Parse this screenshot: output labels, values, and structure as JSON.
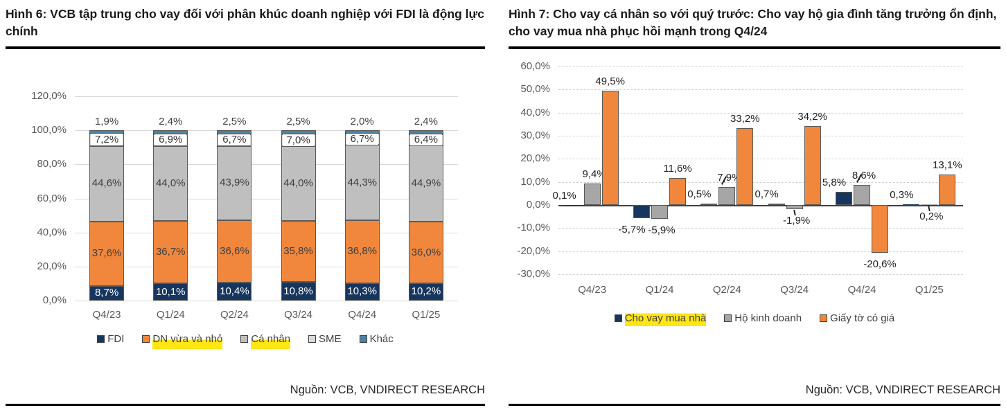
{
  "fig6": {
    "title": "Hình 6: VCB tập trung cho vay đối với phân khúc doanh nghiệp với FDI là động lực chính",
    "source": "Nguồn: VCB, VNDIRECT RESEARCH",
    "legend": [
      {
        "label": "FDI",
        "color": "#17365D",
        "highlight": false
      },
      {
        "label": "DN vừa và nhỏ",
        "color": "#F0873D",
        "highlight": true
      },
      {
        "label": "Cá nhân",
        "color": "#BFBFBF",
        "highlight": true
      },
      {
        "label": "SME",
        "color": "#D9D9D9",
        "highlight": false
      },
      {
        "label": "Khác",
        "color": "#4E81A0",
        "highlight": false
      }
    ]
  },
  "fig7": {
    "title": "Hình 7: Cho vay cá nhân so với quý trước: Cho vay hộ gia đình tăng trưởng ổn định, cho vay mua nhà phục hồi mạnh trong Q4/24",
    "source": "Nguồn: VCB, VNDIRECT RESEARCH",
    "legend": [
      {
        "label": "Cho vay mua nhà",
        "color": "#17365D",
        "highlight": true
      },
      {
        "label": "Hộ kinh doanh",
        "color": "#A6A6A6",
        "highlight": false
      },
      {
        "label": "Giấy tờ có giá",
        "color": "#F0873D",
        "highlight": false
      }
    ]
  },
  "chart_data": [
    {
      "type": "bar",
      "subtype": "stacked",
      "title": "VCB loan book mix by segment",
      "categories": [
        "Q4/23",
        "Q1/24",
        "Q2/24",
        "Q3/24",
        "Q4/24",
        "Q1/25"
      ],
      "series": [
        {
          "name": "FDI",
          "color": "#17365D",
          "label_style": "white",
          "values": [
            8.7,
            10.1,
            10.4,
            10.8,
            10.3,
            10.2
          ],
          "labels": [
            "8,7%",
            "10,1%",
            "10,4%",
            "10,8%",
            "10,3%",
            "10,2%"
          ]
        },
        {
          "name": "DN vừa và nhỏ",
          "color": "#F0873D",
          "label_style": "inside",
          "values": [
            37.6,
            36.7,
            36.6,
            35.8,
            36.8,
            36.0
          ],
          "labels": [
            "37,6%",
            "36,7%",
            "36,6%",
            "35,8%",
            "36,8%",
            "36,0%"
          ]
        },
        {
          "name": "Cá nhân",
          "color": "#BFBFBF",
          "label_style": "inside",
          "values": [
            44.6,
            44.0,
            43.9,
            44.0,
            44.3,
            44.9
          ],
          "labels": [
            "44,6%",
            "44,0%",
            "43,9%",
            "44,0%",
            "44,3%",
            "44,9%"
          ]
        },
        {
          "name": "SME",
          "color": "#D9D9D9",
          "label_style": "boxed",
          "values": [
            7.2,
            6.9,
            6.7,
            7.0,
            6.7,
            6.4
          ],
          "labels": [
            "7,2%",
            "6,9%",
            "6,7%",
            "7,0%",
            "6,7%",
            "6,4%"
          ]
        },
        {
          "name": "Khác",
          "color": "#4E81A0",
          "label_style": "above",
          "values": [
            1.9,
            2.4,
            2.5,
            2.5,
            2.0,
            2.4
          ],
          "labels": [
            "1,9%",
            "2,4%",
            "2,5%",
            "2,5%",
            "2,0%",
            "2,4%"
          ]
        }
      ],
      "ylim": [
        0,
        120
      ],
      "y_ticks": {
        "values": [
          0,
          20,
          40,
          60,
          80,
          100,
          120
        ],
        "labels": [
          "0,0%",
          "20,0%",
          "40,0%",
          "60,0%",
          "80,0%",
          "100,0%",
          "120,0%"
        ]
      },
      "grid": "solid",
      "legend_position": "bottom"
    },
    {
      "type": "bar",
      "subtype": "grouped",
      "title": "Personal lending growth q/q",
      "categories": [
        "Q4/23",
        "Q1/24",
        "Q2/24",
        "Q3/24",
        "Q4/24",
        "Q1/25"
      ],
      "series": [
        {
          "name": "Cho vay mua nhà",
          "color": "#17365D",
          "values": [
            0.1,
            -5.7,
            0.5,
            0.7,
            5.8,
            0.3
          ],
          "labels": [
            "0,1%",
            "-5,7%",
            "0,5%",
            "0,7%",
            "5,8%",
            "0,3%"
          ],
          "label_placement": [
            "above",
            "below",
            "above",
            "above",
            "above",
            "above"
          ],
          "leader": [
            false,
            false,
            false,
            false,
            false,
            false
          ]
        },
        {
          "name": "Hộ kinh doanh",
          "color": "#A6A6A6",
          "values": [
            9.4,
            -5.9,
            7.9,
            -1.9,
            8.6,
            0.2
          ],
          "labels": [
            "9,4%",
            "-5,9%",
            "7,9%",
            "-1,9%",
            "8,6%",
            "0,2%"
          ],
          "label_placement": [
            "above",
            "below",
            "above",
            "below",
            "above",
            "below"
          ],
          "leader": [
            false,
            false,
            true,
            true,
            true,
            true
          ]
        },
        {
          "name": "Giấy tờ có giá",
          "color": "#F0873D",
          "values": [
            49.5,
            11.6,
            33.2,
            34.2,
            -20.6,
            13.1
          ],
          "labels": [
            "49,5%",
            "11,6%",
            "33,2%",
            "34,2%",
            "-20,6%",
            "13,1%"
          ],
          "label_placement": [
            "above",
            "above",
            "above",
            "above",
            "below",
            "above"
          ],
          "leader": [
            false,
            false,
            false,
            false,
            false,
            false
          ]
        }
      ],
      "ylim": [
        -30,
        60
      ],
      "y_ticks": {
        "values": [
          -30,
          -20,
          -10,
          0,
          10,
          20,
          30,
          40,
          50,
          60
        ],
        "labels": [
          "-30,0%",
          "-20,0%",
          "-10,0%",
          "0,0%",
          "10,0%",
          "20,0%",
          "30,0%",
          "40,0%",
          "50,0%",
          "60,0%"
        ]
      },
      "grid": "dotted",
      "legend_position": "bottom"
    }
  ]
}
